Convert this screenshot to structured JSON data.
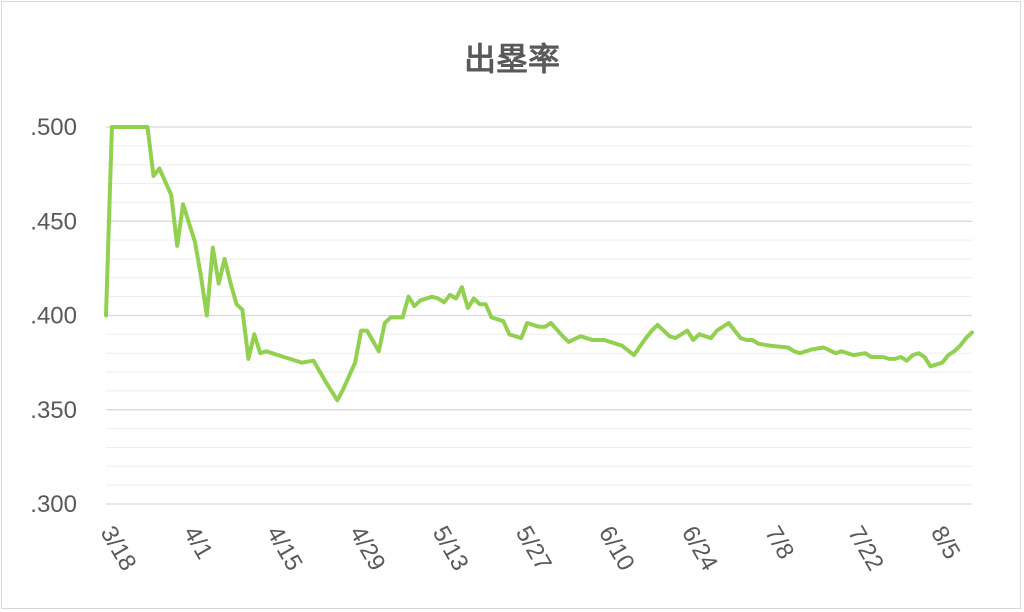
{
  "chart_data": {
    "type": "line",
    "title": "出塁率",
    "xlabel": "",
    "ylabel": "",
    "ylim": [
      0.3,
      0.5
    ],
    "ytick_values": [
      0.3,
      0.35,
      0.4,
      0.45,
      0.5
    ],
    "ytick_labels": [
      ".300",
      ".350",
      ".400",
      ".450",
      ".500"
    ],
    "minor_grid_step": 0.01,
    "grid": true,
    "legend": "none",
    "x_start": "3/18",
    "x_end": "8/11",
    "xtick_labels": [
      "3/18",
      "4/1",
      "4/15",
      "4/29",
      "5/13",
      "5/27",
      "6/10",
      "6/24",
      "7/8",
      "7/22",
      "8/5"
    ],
    "line_color": "#92d050",
    "series": [
      {
        "x": [
          "3/18",
          "3/19",
          "3/20",
          "3/21",
          "3/22",
          "3/23",
          "3/24",
          "3/25",
          "3/26",
          "3/27",
          "3/28",
          "3/29",
          "3/30",
          "3/31",
          "4/1",
          "4/2",
          "4/3",
          "4/4",
          "4/5",
          "4/6",
          "4/7",
          "4/8",
          "4/9",
          "4/10",
          "4/11",
          "4/12",
          "4/13",
          "4/14",
          "4/15",
          "4/16",
          "4/18",
          "4/20",
          "4/22",
          "4/24",
          "4/26",
          "4/27",
          "4/29",
          "4/30",
          "5/1",
          "5/3",
          "5/4",
          "5/5",
          "5/7",
          "5/8",
          "5/9",
          "5/10",
          "5/12",
          "5/13",
          "5/14",
          "5/15",
          "5/16",
          "5/17",
          "5/18",
          "5/19",
          "5/20",
          "5/21",
          "5/22",
          "5/24",
          "5/25",
          "5/27",
          "5/28",
          "5/30",
          "5/31",
          "6/1",
          "6/3",
          "6/4",
          "6/6",
          "6/8",
          "6/10",
          "6/13",
          "6/15",
          "6/17",
          "6/18",
          "6/19",
          "6/20",
          "6/21",
          "6/22",
          "6/24",
          "6/25",
          "6/26",
          "6/27",
          "6/28",
          "6/29",
          "7/1",
          "7/2",
          "7/3",
          "7/4",
          "7/5",
          "7/6",
          "7/8",
          "7/11",
          "7/12",
          "7/13",
          "7/15",
          "7/17",
          "7/19",
          "7/20",
          "7/22",
          "7/24",
          "7/25",
          "7/27",
          "7/28",
          "7/29",
          "7/30",
          "7/31",
          "8/1",
          "8/2",
          "8/3",
          "8/4",
          "8/5",
          "8/6",
          "8/7",
          "8/8",
          "8/9",
          "8/10",
          "8/11"
        ],
        "y": [
          0.4,
          0.5,
          0.5,
          0.5,
          0.5,
          0.5,
          0.5,
          0.5,
          0.474,
          0.478,
          0.471,
          0.464,
          0.437,
          0.459,
          0.449,
          0.439,
          0.421,
          0.4,
          0.436,
          0.417,
          0.43,
          0.417,
          0.406,
          0.403,
          0.377,
          0.39,
          0.38,
          0.381,
          0.38,
          0.379,
          0.377,
          0.375,
          0.376,
          0.365,
          0.355,
          0.361,
          0.375,
          0.392,
          0.392,
          0.381,
          0.396,
          0.399,
          0.399,
          0.41,
          0.405,
          0.408,
          0.41,
          0.409,
          0.407,
          0.411,
          0.409,
          0.415,
          0.404,
          0.409,
          0.406,
          0.406,
          0.399,
          0.397,
          0.39,
          0.388,
          0.396,
          0.394,
          0.394,
          0.396,
          0.389,
          0.386,
          0.389,
          0.387,
          0.387,
          0.384,
          0.379,
          0.388,
          0.392,
          0.395,
          0.392,
          0.389,
          0.388,
          0.392,
          0.387,
          0.39,
          0.389,
          0.388,
          0.392,
          0.396,
          0.392,
          0.388,
          0.387,
          0.387,
          0.385,
          0.384,
          0.383,
          0.381,
          0.38,
          0.382,
          0.383,
          0.38,
          0.381,
          0.379,
          0.38,
          0.378,
          0.378,
          0.377,
          0.377,
          0.378,
          0.376,
          0.379,
          0.38,
          0.378,
          0.373,
          0.374,
          0.375,
          0.379,
          0.381,
          0.384,
          0.388,
          0.391
        ]
      }
    ]
  }
}
